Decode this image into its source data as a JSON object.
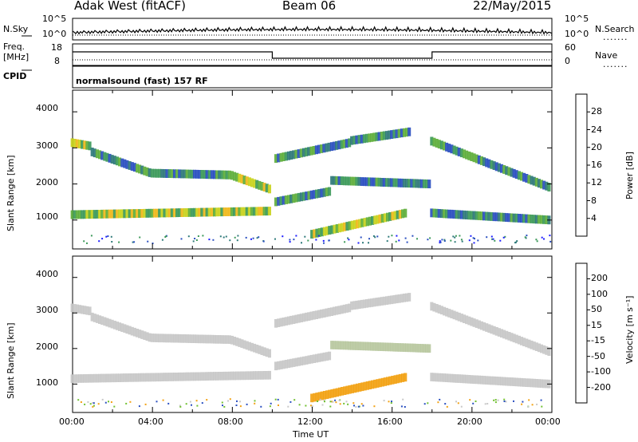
{
  "header": {
    "radar": "Adak West (fitACF)",
    "beam": "Beam 06",
    "date": "22/May/2015"
  },
  "top_panel": {
    "left_label": "N.Sky",
    "right_label": "N.Search",
    "left_ticks": [
      "10^5",
      "10^0"
    ],
    "right_ticks": [
      "10^5",
      "10^0"
    ]
  },
  "freq_panel": {
    "left_label": "Freq.",
    "left_unit": "[MHz]",
    "right_label": "Nave",
    "left_ticks": [
      "18",
      "8"
    ],
    "right_ticks": [
      "60",
      "0"
    ],
    "cpid_label": "CPID",
    "cpid_text": "normalsound (fast) 157 RF"
  },
  "legend_dots": ".......",
  "chart_data": [
    {
      "type": "heatmap",
      "name": "power",
      "ylabel": "Slant Range [km]",
      "yticks": [
        "4000",
        "3000",
        "2000",
        "1000"
      ],
      "ylim": [
        200,
        4600
      ],
      "xlim": [
        0,
        24
      ],
      "colorbar": {
        "label": "Power [dB]",
        "ticks": [
          "28",
          "24",
          "20",
          "16",
          "12",
          "8",
          "4"
        ],
        "colors": [
          "#1c1cff",
          "#2a4fc0",
          "#2f7a7a",
          "#3d9a5a",
          "#5faf3c",
          "#c9d21e",
          "#f0b81c",
          "#f08a14",
          "#ec5a14",
          "#e01e10"
        ]
      },
      "bands": [
        {
          "start_h": 0.0,
          "end_h": 1.0,
          "r0": 3150,
          "r1": 3050
        },
        {
          "start_h": 1.0,
          "end_h": 4.0,
          "r0": 2900,
          "r1": 2300
        },
        {
          "start_h": 4.0,
          "end_h": 8.0,
          "r0": 2300,
          "r1": 2250
        },
        {
          "start_h": 8.0,
          "end_h": 10.0,
          "r0": 2250,
          "r1": 1850
        },
        {
          "start_h": 10.2,
          "end_h": 13.0,
          "r0": 1500,
          "r1": 1800
        },
        {
          "start_h": 13.0,
          "end_h": 18.0,
          "r0": 2100,
          "r1": 2000
        },
        {
          "start_h": 0.0,
          "end_h": 10.0,
          "r0": 1150,
          "r1": 1250
        },
        {
          "start_h": 10.2,
          "end_h": 14.0,
          "r0": 2700,
          "r1": 3150
        },
        {
          "start_h": 14.0,
          "end_h": 17.0,
          "r0": 3200,
          "r1": 3450
        },
        {
          "start_h": 12.0,
          "end_h": 16.8,
          "r0": 600,
          "r1": 1200
        },
        {
          "start_h": 18.0,
          "end_h": 24.0,
          "r0": 3200,
          "r1": 1900
        },
        {
          "start_h": 18.0,
          "end_h": 24.0,
          "r0": 1200,
          "r1": 1000
        }
      ]
    },
    {
      "type": "heatmap",
      "name": "velocity",
      "ylabel": "Slant Range [km]",
      "xlabel": "Time UT",
      "yticks": [
        "4000",
        "3000",
        "2000",
        "1000"
      ],
      "xticks": [
        "00:00",
        "04:00",
        "08:00",
        "12:00",
        "16:00",
        "20:00",
        "00:00"
      ],
      "ylim": [
        200,
        4600
      ],
      "xlim": [
        0,
        24
      ],
      "colorbar": {
        "label": "Velocity [m s⁻¹]",
        "ticks": [
          "200",
          "100",
          "50",
          "15",
          "-15",
          "-50",
          "-100",
          "-200"
        ],
        "colors": [
          "#1c1cff",
          "#2a4fc0",
          "#2f7a7a",
          "#3d9a5a",
          "#70c030",
          "#c8c8c8",
          "#c8c8c8",
          "#f2a214",
          "#f07a14",
          "#ec4a14",
          "#e01010"
        ]
      }
    }
  ]
}
